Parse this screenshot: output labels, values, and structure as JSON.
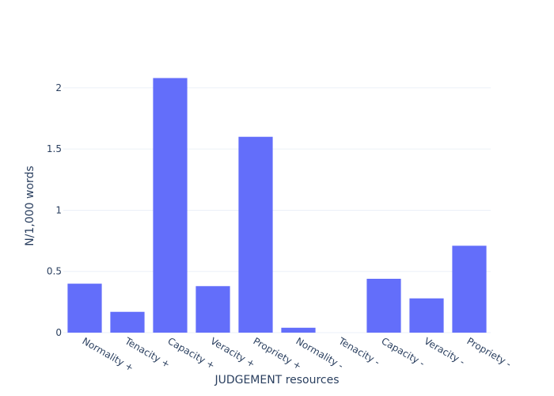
{
  "chart_data": {
    "type": "bar",
    "title": "",
    "xlabel": "JUDGEMENT resources",
    "ylabel": "N/1,000 words",
    "categories": [
      "Normality +",
      "Tenacity +",
      "Capacity +",
      "Veracity +",
      "Propriety +",
      "Normality -",
      "Tenacity -",
      "Capacity -",
      "Veracity -",
      "Propriety -"
    ],
    "values": [
      0.4,
      0.17,
      2.08,
      0.38,
      1.6,
      0.04,
      0.0,
      0.44,
      0.28,
      0.71
    ],
    "ylim": [
      0,
      2.2
    ],
    "yticks": [
      0,
      0.5,
      1,
      1.5,
      2
    ],
    "ytick_labels": [
      "0",
      "0.5",
      "1",
      "1.5",
      "2"
    ],
    "grid": true,
    "legend": "none",
    "colors": {
      "bar": "#636efa",
      "grid": "#ebf0f8",
      "text": "#2a3f5f",
      "background": "#ffffff"
    }
  }
}
